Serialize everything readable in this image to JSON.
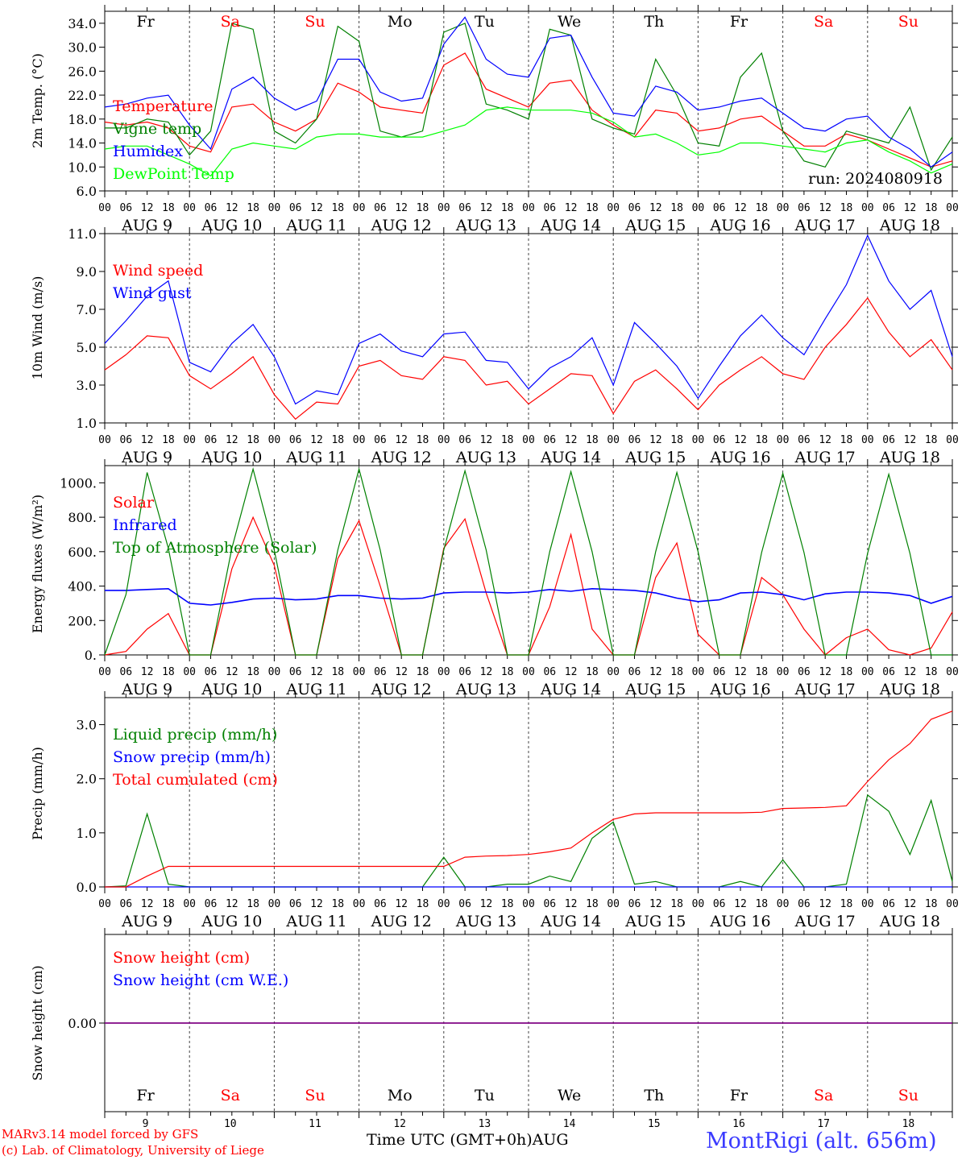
{
  "footer": {
    "model_line": "MARv3.14 model forced by GFS",
    "lab_line": "(c) Lab. of Climatology, University of Liege",
    "time_label": "Time UTC (GMT+0h)",
    "month_label": "AUG",
    "station": "MontRigi (alt. 656m)"
  },
  "chart_data": [
    {
      "type": "line",
      "ylabel": "2m Temp. (°C)",
      "yticks": [
        "6.0",
        "10.0",
        "14.0",
        "18.0",
        "22.0",
        "26.0",
        "30.0",
        "34.0"
      ],
      "y_tick_values": [
        6,
        8,
        10,
        12,
        14,
        16,
        18,
        20,
        22,
        24,
        26,
        28,
        30,
        32,
        34
      ],
      "ylim": [
        6,
        36
      ],
      "annotation": "run: 2024080918",
      "day_names": [
        "Fr",
        "Sa",
        "Su",
        "Mo",
        "Tu",
        "We",
        "Th",
        "Fr",
        "Sa",
        "Su"
      ],
      "day_colors": [
        "#000000",
        "#ff0000",
        "#ff0000",
        "#000000",
        "#000000",
        "#000000",
        "#000000",
        "#000000",
        "#ff0000",
        "#ff0000"
      ],
      "x_hours": [
        0,
        6,
        12,
        18,
        24,
        30,
        36,
        42,
        48,
        54,
        60,
        66,
        72,
        78,
        84,
        90,
        96,
        102,
        108,
        114,
        120,
        126,
        132,
        138,
        144,
        150,
        156,
        162,
        168,
        174,
        180,
        186,
        192,
        198,
        204,
        210,
        216,
        222,
        228,
        234,
        240
      ],
      "series": [
        {
          "name": "Temperature",
          "color": "#ff0000",
          "values": [
            17.5,
            17.0,
            17.5,
            16.5,
            13.5,
            12.5,
            20.0,
            20.5,
            17.5,
            16.0,
            18.0,
            24.0,
            22.5,
            20.0,
            19.5,
            19.0,
            27.0,
            29.0,
            23.0,
            21.5,
            20.0,
            24.0,
            24.5,
            19.5,
            17.0,
            15.0,
            19.5,
            19.0,
            16.0,
            16.5,
            18.0,
            18.5,
            16.0,
            13.5,
            13.5,
            15.5,
            14.5,
            13.0,
            11.5,
            10.0,
            11.0
          ]
        },
        {
          "name": "Vigne temp",
          "color": "#008000",
          "values": [
            16.5,
            16.5,
            18.0,
            17.5,
            12.0,
            16.0,
            34.0,
            33.0,
            16.0,
            14.0,
            18.0,
            33.5,
            31.0,
            16.0,
            15.0,
            16.0,
            32.5,
            34.0,
            20.5,
            19.5,
            18.0,
            33.0,
            32.0,
            18.0,
            16.5,
            15.5,
            28.0,
            22.0,
            14.0,
            13.5,
            25.0,
            29.0,
            16.0,
            11.0,
            10.0,
            16.0,
            15.0,
            14.0,
            20.0,
            9.5,
            15.0
          ]
        },
        {
          "name": "Humidex",
          "color": "#0000ff",
          "values": [
            20.0,
            20.5,
            21.5,
            22.0,
            17.0,
            13.0,
            23.0,
            25.0,
            21.5,
            19.5,
            21.0,
            28.0,
            28.0,
            22.5,
            21.0,
            21.5,
            30.5,
            35.0,
            28.0,
            25.5,
            25.0,
            31.5,
            32.0,
            25.0,
            19.0,
            18.5,
            23.5,
            22.5,
            19.5,
            20.0,
            21.0,
            21.5,
            19.0,
            16.5,
            16.0,
            18.0,
            18.5,
            15.0,
            13.0,
            10.0,
            12.5
          ]
        },
        {
          "name": "DewPoint Temp",
          "color": "#00ff00",
          "values": [
            13.0,
            13.5,
            13.5,
            12.0,
            10.5,
            8.5,
            13.0,
            14.0,
            13.5,
            13.0,
            15.0,
            15.5,
            15.5,
            15.0,
            15.0,
            15.0,
            16.0,
            17.0,
            19.5,
            20.0,
            19.5,
            19.5,
            19.5,
            19.0,
            17.5,
            15.0,
            15.5,
            14.0,
            12.0,
            12.5,
            14.0,
            14.0,
            13.5,
            13.0,
            12.5,
            14.0,
            14.5,
            12.5,
            11.0,
            9.0,
            10.5
          ]
        }
      ]
    },
    {
      "type": "line",
      "ylabel": "10m Wind (m/s)",
      "yticks": [
        "1.0",
        "3.0",
        "5.0",
        "7.0",
        "9.0",
        "11.0"
      ],
      "ylim": [
        1,
        11
      ],
      "ref_line": 5,
      "x_hours": [
        0,
        6,
        12,
        18,
        24,
        30,
        36,
        42,
        48,
        54,
        60,
        66,
        72,
        78,
        84,
        90,
        96,
        102,
        108,
        114,
        120,
        126,
        132,
        138,
        144,
        150,
        156,
        162,
        168,
        174,
        180,
        186,
        192,
        198,
        204,
        210,
        216,
        222,
        228,
        234,
        240
      ],
      "series": [
        {
          "name": "Wind speed",
          "color": "#ff0000",
          "values": [
            3.8,
            4.6,
            5.6,
            5.5,
            3.5,
            2.8,
            3.6,
            4.5,
            2.5,
            1.2,
            2.1,
            2.0,
            4.0,
            4.3,
            3.5,
            3.3,
            4.5,
            4.3,
            3.0,
            3.2,
            2.0,
            2.8,
            3.6,
            3.5,
            1.5,
            3.2,
            3.8,
            2.8,
            1.7,
            3.0,
            3.8,
            4.5,
            3.6,
            3.3,
            5.0,
            6.2,
            7.6,
            5.8,
            4.5,
            5.4,
            3.8
          ]
        },
        {
          "name": "Wind gust",
          "color": "#0000ff",
          "values": [
            5.2,
            6.4,
            7.7,
            8.5,
            4.2,
            3.7,
            5.2,
            6.2,
            4.5,
            2.0,
            2.7,
            2.5,
            5.2,
            5.7,
            4.8,
            4.5,
            5.7,
            5.8,
            4.3,
            4.2,
            2.8,
            3.9,
            4.5,
            5.5,
            3.0,
            6.3,
            5.2,
            4.0,
            2.3,
            4.0,
            5.6,
            6.7,
            5.5,
            4.6,
            6.5,
            8.3,
            10.9,
            8.5,
            7.0,
            8.0,
            4.5
          ]
        }
      ]
    },
    {
      "type": "line",
      "ylabel": "Energy fluxes (W/m²)",
      "yticks": [
        "0.",
        "200.",
        "400.",
        "600.",
        "800.",
        "1000."
      ],
      "ylim": [
        0,
        1100
      ],
      "x_hours": [
        0,
        6,
        12,
        18,
        24,
        30,
        36,
        42,
        48,
        54,
        60,
        66,
        72,
        78,
        84,
        90,
        96,
        102,
        108,
        114,
        120,
        126,
        132,
        138,
        144,
        150,
        156,
        162,
        168,
        174,
        180,
        186,
        192,
        198,
        204,
        210,
        216,
        222,
        228,
        234,
        240
      ],
      "series": [
        {
          "name": "Solar",
          "color": "#ff0000",
          "values": [
            0,
            20,
            150,
            240,
            0,
            0,
            500,
            800,
            520,
            0,
            0,
            560,
            780,
            400,
            0,
            0,
            620,
            790,
            360,
            0,
            0,
            280,
            700,
            150,
            0,
            0,
            450,
            650,
            120,
            0,
            0,
            450,
            350,
            150,
            0,
            100,
            150,
            30,
            0,
            40,
            250
          ]
        },
        {
          "name": "Infrared",
          "color": "#0000ff",
          "values": [
            375,
            375,
            380,
            385,
            300,
            290,
            305,
            325,
            330,
            320,
            325,
            345,
            345,
            330,
            325,
            330,
            360,
            365,
            365,
            360,
            365,
            380,
            370,
            385,
            380,
            375,
            360,
            330,
            310,
            320,
            360,
            365,
            350,
            320,
            355,
            365,
            365,
            360,
            345,
            300,
            340
          ]
        },
        {
          "name": "Top of Atmosphere (Solar)",
          "color": "#008000",
          "values": [
            0,
            350,
            1060,
            620,
            0,
            0,
            620,
            1080,
            610,
            0,
            0,
            610,
            1080,
            610,
            0,
            0,
            610,
            1070,
            610,
            0,
            0,
            600,
            1065,
            600,
            0,
            0,
            600,
            1060,
            600,
            0,
            0,
            595,
            1055,
            595,
            0,
            0,
            590,
            1050,
            590,
            0,
            0
          ]
        }
      ]
    },
    {
      "type": "line",
      "ylabel": "Precip (mm/h)",
      "yticks": [
        "0.0",
        "1.0",
        "2.0",
        "3.0"
      ],
      "ylim": [
        0,
        3.5
      ],
      "x_hours": [
        0,
        6,
        12,
        18,
        24,
        30,
        36,
        42,
        48,
        54,
        60,
        66,
        72,
        78,
        84,
        90,
        96,
        102,
        108,
        114,
        120,
        126,
        132,
        138,
        144,
        150,
        156,
        162,
        168,
        174,
        180,
        186,
        192,
        198,
        204,
        210,
        216,
        222,
        228,
        234,
        240
      ],
      "series": [
        {
          "name": "Liquid precip (mm/h)",
          "color": "#008000",
          "values": [
            0,
            0.02,
            1.35,
            0.05,
            0,
            0,
            0,
            0,
            0,
            0,
            0,
            0,
            0,
            0,
            0,
            0,
            0.55,
            0,
            0,
            0.05,
            0.05,
            0.2,
            0.1,
            0.9,
            1.2,
            0.05,
            0.1,
            0,
            0,
            0,
            0.1,
            0,
            0.5,
            0,
            0,
            0.05,
            1.7,
            1.4,
            0.6,
            1.6,
            0.1
          ]
        },
        {
          "name": "Snow precip (mm/h)",
          "color": "#0000ff",
          "values": [
            0,
            0,
            0,
            0,
            0,
            0,
            0,
            0,
            0,
            0,
            0,
            0,
            0,
            0,
            0,
            0,
            0,
            0,
            0,
            0,
            0,
            0,
            0,
            0,
            0,
            0,
            0,
            0,
            0,
            0,
            0,
            0,
            0,
            0,
            0,
            0,
            0,
            0,
            0,
            0,
            0
          ]
        },
        {
          "name": "Total cumulated (cm)",
          "color": "#ff0000",
          "values": [
            0,
            0,
            0.2,
            0.38,
            0.38,
            0.38,
            0.38,
            0.38,
            0.38,
            0.38,
            0.38,
            0.38,
            0.38,
            0.38,
            0.38,
            0.38,
            0.38,
            0.55,
            0.57,
            0.58,
            0.6,
            0.65,
            0.72,
            1.0,
            1.25,
            1.35,
            1.37,
            1.37,
            1.37,
            1.37,
            1.37,
            1.38,
            1.45,
            1.46,
            1.47,
            1.5,
            1.95,
            2.35,
            2.65,
            3.1,
            3.25
          ]
        }
      ]
    },
    {
      "type": "line",
      "ylabel": "Snow height (cm)",
      "yticks": [
        "0.00"
      ],
      "ylim": [
        -1,
        1
      ],
      "x_hours": [
        0,
        240
      ],
      "series": [
        {
          "name": "Snow height (cm)",
          "color": "#ff0000",
          "values": [
            0,
            0
          ]
        },
        {
          "name": "Snow height (cm W.E.)",
          "color": "#0000ff",
          "values": [
            0,
            0
          ]
        }
      ],
      "day_names": [
        "Fr",
        "Sa",
        "Su",
        "Mo",
        "Tu",
        "We",
        "Th",
        "Fr",
        "Sa",
        "Su"
      ],
      "day_colors": [
        "#000000",
        "#ff0000",
        "#ff0000",
        "#000000",
        "#000000",
        "#000000",
        "#000000",
        "#000000",
        "#ff0000",
        "#ff0000"
      ],
      "day_numbers": [
        "9",
        "10",
        "11",
        "12",
        "13",
        "14",
        "15",
        "16",
        "17",
        "18"
      ]
    }
  ],
  "x_axis": {
    "hour_labels": [
      "00",
      "06",
      "12",
      "18"
    ],
    "end_label": "00",
    "dates": [
      "AUG  9",
      "AUG 10",
      "AUG 11",
      "AUG 12",
      "AUG 13",
      "AUG 14",
      "AUG 15",
      "AUG 16",
      "AUG 17",
      "AUG 18"
    ]
  }
}
